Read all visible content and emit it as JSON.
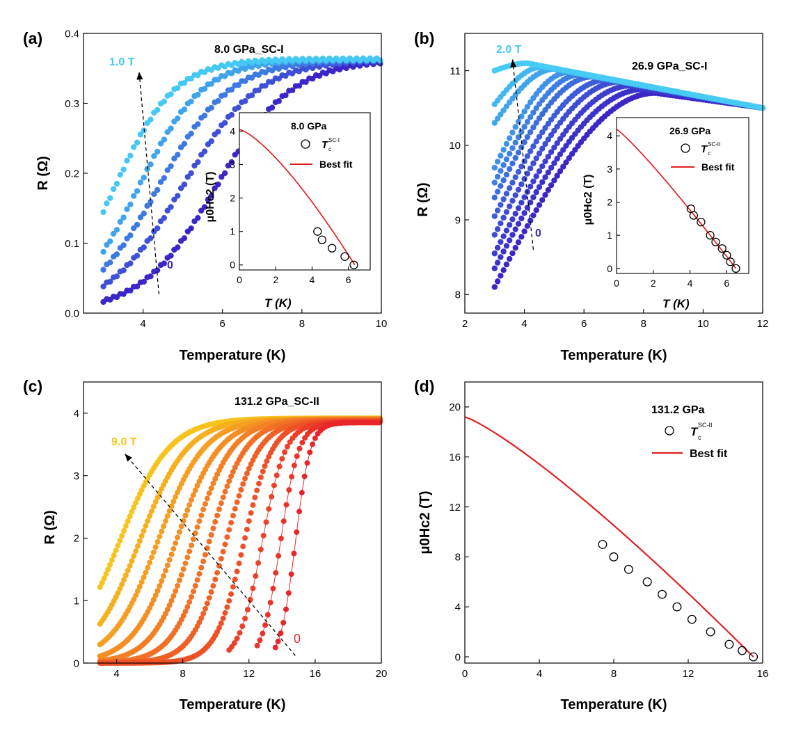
{
  "chart_data": [
    {
      "type": "scatter",
      "panel_label": "(a)",
      "title": "8.0 GPa_SC-I",
      "xlabel": "Temperature (K)",
      "ylabel": "R (Ω)",
      "xlim": [
        2.5,
        10
      ],
      "ylim": [
        0,
        0.4
      ],
      "xticks": [
        4,
        6,
        8,
        10
      ],
      "yticks": [
        0.0,
        0.1,
        0.2,
        0.3,
        0.4
      ],
      "x_tick_labels": [
        "4",
        "6",
        "8",
        "10"
      ],
      "y_tick_labels": [
        "0.0",
        "0.1",
        "0.2",
        "0.3",
        "0.4"
      ],
      "grid": false,
      "annotations": {
        "top_label": "1.0 T",
        "bottom_label": "0"
      },
      "arrow": {
        "from": [
          4.4,
          0.027
        ],
        "to": [
          3.9,
          0.345
        ]
      },
      "series": [
        {
          "field": 0.0,
          "color": "#3b27c7",
          "Tc": 5.85,
          "width": 0.95,
          "Rn": 0.363,
          "xmin": 3.0
        },
        {
          "field": 0.25,
          "color": "#3e50d7",
          "Tc": 5.0,
          "width": 0.95,
          "Rn": 0.363,
          "xmin": 3.0
        },
        {
          "field": 0.5,
          "color": "#3c79e2",
          "Tc": 4.4,
          "width": 0.9,
          "Rn": 0.363,
          "xmin": 3.0
        },
        {
          "field": 0.75,
          "color": "#3ea3ec",
          "Tc": 3.9,
          "width": 0.8,
          "Rn": 0.363,
          "xmin": 3.0
        },
        {
          "field": 1.0,
          "color": "#45c8f3",
          "Tc": 3.3,
          "width": 0.75,
          "Rn": 0.363,
          "xmin": 3.0
        }
      ],
      "inset": {
        "title": "8.0 GPa",
        "xlabel": "T (K)",
        "ylabel": "μ0Hc2 (T)",
        "xlim": [
          0,
          7.2
        ],
        "ylim": [
          -0.15,
          4.55
        ],
        "xticks": [
          0,
          2,
          4,
          6
        ],
        "yticks": [
          0,
          1,
          2,
          3,
          4
        ],
        "x_tick_labels": [
          "0",
          "2",
          "4",
          "6"
        ],
        "y_tick_labels": [
          "0",
          "1",
          "2",
          "3",
          "4"
        ],
        "legend": [
          {
            "label": "T",
            "sup": "SC-I",
            "sub": "c",
            "marker": "open-circle"
          },
          {
            "label": "Best fit",
            "marker": "red-line"
          }
        ],
        "points": [
          [
            4.3,
            1.0
          ],
          [
            4.55,
            0.75
          ],
          [
            5.1,
            0.5
          ],
          [
            5.8,
            0.25
          ],
          [
            6.3,
            0.0
          ]
        ],
        "fit": {
          "H0": 4.05,
          "Tc0": 6.35,
          "exponent": 1.35
        }
      }
    },
    {
      "type": "scatter",
      "panel_label": "(b)",
      "title": "26.9 GPa_SC-I",
      "xlabel": "Temperature (K)",
      "ylabel": "R (Ω)",
      "xlim": [
        2,
        12
      ],
      "ylim": [
        7.75,
        11.5
      ],
      "xticks": [
        2,
        4,
        6,
        8,
        10,
        12
      ],
      "yticks": [
        8,
        9,
        10,
        11
      ],
      "x_tick_labels": [
        "2",
        "4",
        "6",
        "8",
        "10",
        "12"
      ],
      "y_tick_labels": [
        "8",
        "9",
        "10",
        "11"
      ],
      "grid": false,
      "annotations": {
        "top_label": "2.0 T",
        "bottom_label": "0"
      },
      "arrow": {
        "from": [
          4.3,
          8.6
        ],
        "to": [
          3.6,
          11.15
        ]
      },
      "series": [
        {
          "field": 0.0,
          "color": "#3b27c7",
          "R0": 8.1,
          "Tp": 8.4,
          "Rp": 10.7
        },
        {
          "field": 0.2,
          "color": "#3b32cb",
          "R0": 8.35,
          "Tp": 8.0,
          "Rp": 10.75
        },
        {
          "field": 0.4,
          "color": "#3d3ecf",
          "R0": 8.55,
          "Tp": 7.6,
          "Rp": 10.8
        },
        {
          "field": 0.6,
          "color": "#3d4dd4",
          "R0": 8.8,
          "Tp": 7.2,
          "Rp": 10.85
        },
        {
          "field": 0.8,
          "color": "#3c5cd9",
          "R0": 9.05,
          "Tp": 6.8,
          "Rp": 10.88
        },
        {
          "field": 1.0,
          "color": "#3c6ddd",
          "R0": 9.3,
          "Tp": 6.3,
          "Rp": 10.92
        },
        {
          "field": 1.2,
          "color": "#3d7fe2",
          "R0": 9.5,
          "Tp": 5.9,
          "Rp": 10.95
        },
        {
          "field": 1.4,
          "color": "#3e92e7",
          "R0": 9.7,
          "Tp": 5.5,
          "Rp": 10.98
        },
        {
          "field": 1.6,
          "color": "#3fa6ec",
          "R0": 10.3,
          "Tp": 5.0,
          "Rp": 11.02
        },
        {
          "field": 1.8,
          "color": "#42b8f0",
          "R0": 10.55,
          "Tp": 4.6,
          "Rp": 11.05
        },
        {
          "field": 2.0,
          "color": "#47cbf4",
          "R0": 11.0,
          "Tp": 4.1,
          "Rp": 11.1
        }
      ],
      "tail": {
        "x_end": 12,
        "R_end": 10.5
      },
      "inset": {
        "title": "26.9 GPa",
        "xlabel": "T (K)",
        "ylabel": "μ0Hc2 (T)",
        "xlim": [
          0,
          7.2
        ],
        "ylim": [
          -0.15,
          4.55
        ],
        "xticks": [
          0,
          2,
          4,
          6
        ],
        "yticks": [
          0,
          1,
          2,
          3,
          4
        ],
        "x_tick_labels": [
          "0",
          "2",
          "4",
          "6"
        ],
        "y_tick_labels": [
          "0",
          "1",
          "2",
          "3",
          "4"
        ],
        "legend": [
          {
            "label": "T",
            "sup": "SC-II",
            "sub": "c",
            "marker": "open-circle"
          },
          {
            "label": "Best fit",
            "marker": "red-line"
          }
        ],
        "points": [
          [
            4.05,
            1.8
          ],
          [
            4.2,
            1.6
          ],
          [
            4.6,
            1.4
          ],
          [
            5.1,
            1.0
          ],
          [
            5.4,
            0.8
          ],
          [
            5.75,
            0.6
          ],
          [
            6.0,
            0.4
          ],
          [
            6.2,
            0.2
          ],
          [
            6.5,
            0.0
          ]
        ],
        "fit": {
          "H0": 4.2,
          "Tc0": 6.5,
          "exponent": 1.12
        }
      }
    },
    {
      "type": "scatter",
      "panel_label": "(c)",
      "title": "131.2 GPa_SC-II",
      "xlabel": "Temperature (K)",
      "ylabel": "R (Ω)",
      "xlim": [
        2,
        20
      ],
      "ylim": [
        0,
        4.5
      ],
      "xticks": [
        4,
        8,
        12,
        16,
        20
      ],
      "yticks": [
        0,
        1,
        2,
        3,
        4
      ],
      "x_tick_labels": [
        "4",
        "8",
        "12",
        "16",
        "20"
      ],
      "y_tick_labels": [
        "0",
        "1",
        "2",
        "3",
        "4"
      ],
      "grid": false,
      "annotations": {
        "top_label": "9.0 T",
        "bottom_label": "0"
      },
      "arrow": {
        "from": [
          14.8,
          0.12
        ],
        "to": [
          4.5,
          3.35
        ]
      },
      "series": [
        {
          "field": 0.0,
          "color": "#e8262a",
          "Tc": 14.8,
          "width": 0.45,
          "Rn": 3.85,
          "xmin": 13.6
        },
        {
          "field": 0.5,
          "color": "#ea3329",
          "Tc": 13.9,
          "width": 0.55,
          "Rn": 3.85,
          "xmin": 12.5
        },
        {
          "field": 1.0,
          "color": "#ec4028",
          "Tc": 12.8,
          "width": 0.7,
          "Rn": 3.86,
          "xmin": 10.8
        },
        {
          "field": 2.0,
          "color": "#ee5027",
          "Tc": 11.7,
          "width": 0.85,
          "Rn": 3.87,
          "xmin": 3.0
        },
        {
          "field": 3.0,
          "color": "#f06126",
          "Tc": 10.6,
          "width": 1.0,
          "Rn": 3.88,
          "xmin": 3.0
        },
        {
          "field": 4.0,
          "color": "#f17025",
          "Tc": 9.6,
          "width": 1.1,
          "Rn": 3.89,
          "xmin": 3.0
        },
        {
          "field": 5.0,
          "color": "#f38025",
          "Tc": 8.6,
          "width": 1.2,
          "Rn": 3.9,
          "xmin": 3.0
        },
        {
          "field": 6.0,
          "color": "#f48f24",
          "Tc": 7.6,
          "width": 1.3,
          "Rn": 3.9,
          "xmin": 3.0
        },
        {
          "field": 7.0,
          "color": "#f59f22",
          "Tc": 6.5,
          "width": 1.4,
          "Rn": 3.91,
          "xmin": 3.0
        },
        {
          "field": 8.0,
          "color": "#f6b01f",
          "Tc": 5.4,
          "width": 1.45,
          "Rn": 3.91,
          "xmin": 3.0
        },
        {
          "field": 9.0,
          "color": "#f7c31c",
          "Tc": 4.2,
          "width": 1.5,
          "Rn": 3.92,
          "xmin": 3.0
        }
      ],
      "zero_field_line": true
    },
    {
      "type": "scatter",
      "panel_label": "(d)",
      "title": "131.2 GPa",
      "xlabel": "Temperature (K)",
      "ylabel": "μ0Hc2 (T)",
      "xlim": [
        0,
        16
      ],
      "ylim": [
        -0.5,
        22
      ],
      "xticks": [
        0,
        4,
        8,
        12,
        16
      ],
      "yticks": [
        0,
        4,
        8,
        12,
        16,
        20
      ],
      "x_tick_labels": [
        "0",
        "4",
        "8",
        "12",
        "16"
      ],
      "y_tick_labels": [
        "0",
        "4",
        "8",
        "12",
        "16",
        "20"
      ],
      "grid": false,
      "legend": [
        {
          "label": "T",
          "sup": "SC-II",
          "sub": "c",
          "marker": "open-circle"
        },
        {
          "label": "Best fit",
          "marker": "red-line"
        }
      ],
      "points": [
        [
          7.4,
          9.0
        ],
        [
          8.0,
          8.0
        ],
        [
          8.8,
          7.0
        ],
        [
          9.8,
          6.0
        ],
        [
          10.6,
          5.0
        ],
        [
          11.4,
          4.0
        ],
        [
          12.2,
          3.0
        ],
        [
          13.2,
          2.0
        ],
        [
          14.2,
          1.0
        ],
        [
          14.9,
          0.5
        ],
        [
          15.5,
          0.0
        ]
      ],
      "fit": {
        "H0": 19.2,
        "Tc0": 15.5,
        "exponent": 1.2
      }
    }
  ]
}
